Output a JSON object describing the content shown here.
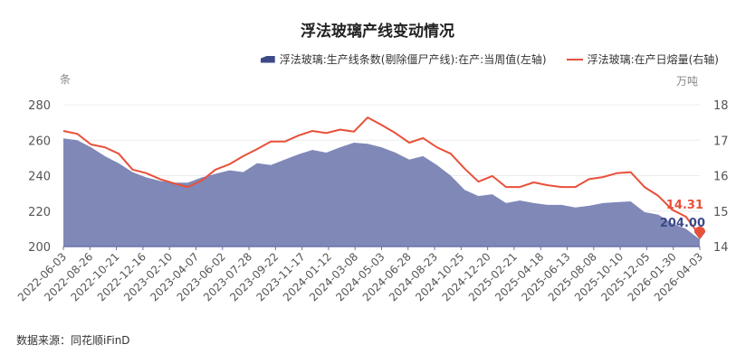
{
  "chart_data": {
    "type": "area+line",
    "title": "浮法玻璃产线变动情况",
    "left_unit": "条",
    "right_unit": "万吨",
    "legend": [
      {
        "name": "浮法玻璃:生产线条数(剔除僵尸产线):在产:当周值(左轴)",
        "type": "area",
        "color": "#3d4a8a"
      },
      {
        "name": "浮法玻璃:在产日熔量(右轴)",
        "type": "line",
        "color": "#e8503a"
      }
    ],
    "legend_placement": "top-right",
    "x_ticks": [
      "2022-06-03",
      "2022-08-26",
      "2022-10-21",
      "2022-12-16",
      "2023-02-10",
      "2023-04-07",
      "2023-06-02",
      "2023-07-28",
      "2023-09-22",
      "2023-11-17",
      "2024-01-12",
      "2024-03-08",
      "2024-05-03",
      "2024-06-28",
      "2024-08-23",
      "2024-10-25",
      "2024-12-20",
      "2025-02-21",
      "2025-04-18",
      "2025-06-13",
      "2025-08-08",
      "2025-10-10",
      "2025-12-05",
      "2026-01-30",
      "2026-04-03"
    ],
    "y_left": {
      "min": 200,
      "max": 280,
      "ticks": [
        200,
        220,
        240,
        260,
        280
      ]
    },
    "y_right": {
      "min": 14,
      "max": 18,
      "ticks": [
        14,
        15,
        16,
        17,
        18
      ]
    },
    "series": [
      {
        "name": "生产线条数(左轴)",
        "axis": "left",
        "values": [
          261,
          260,
          256,
          251,
          247,
          242,
          239,
          237,
          236,
          236,
          239,
          241,
          243,
          242,
          247,
          246,
          249,
          252,
          254.5,
          253,
          256,
          258.6,
          258,
          256,
          253,
          249,
          251,
          246,
          240,
          232,
          228.5,
          229.5,
          224.5,
          226,
          224.5,
          223.5,
          223.5,
          222,
          223,
          224.5,
          225,
          225.5,
          219.4,
          218,
          213,
          210,
          204
        ]
      },
      {
        "name": "在产日熔量(右轴)",
        "axis": "right",
        "values": [
          17.26,
          17.18,
          16.88,
          16.8,
          16.62,
          16.17,
          16.07,
          15.9,
          15.78,
          15.68,
          15.86,
          16.17,
          16.32,
          16.55,
          16.75,
          16.96,
          16.96,
          17.13,
          17.26,
          17.2,
          17.3,
          17.24,
          17.64,
          17.43,
          17.2,
          16.93,
          17.06,
          16.8,
          16.62,
          16.2,
          15.83,
          15.99,
          15.68,
          15.68,
          15.81,
          15.73,
          15.68,
          15.68,
          15.9,
          15.96,
          16.07,
          16.1,
          15.68,
          15.43,
          15.04,
          14.84,
          14.31
        ]
      }
    ],
    "end_labels": {
      "line": "14.31",
      "area": "204.00"
    },
    "grid": true
  },
  "source": "数据来源：同花顺iFinD"
}
